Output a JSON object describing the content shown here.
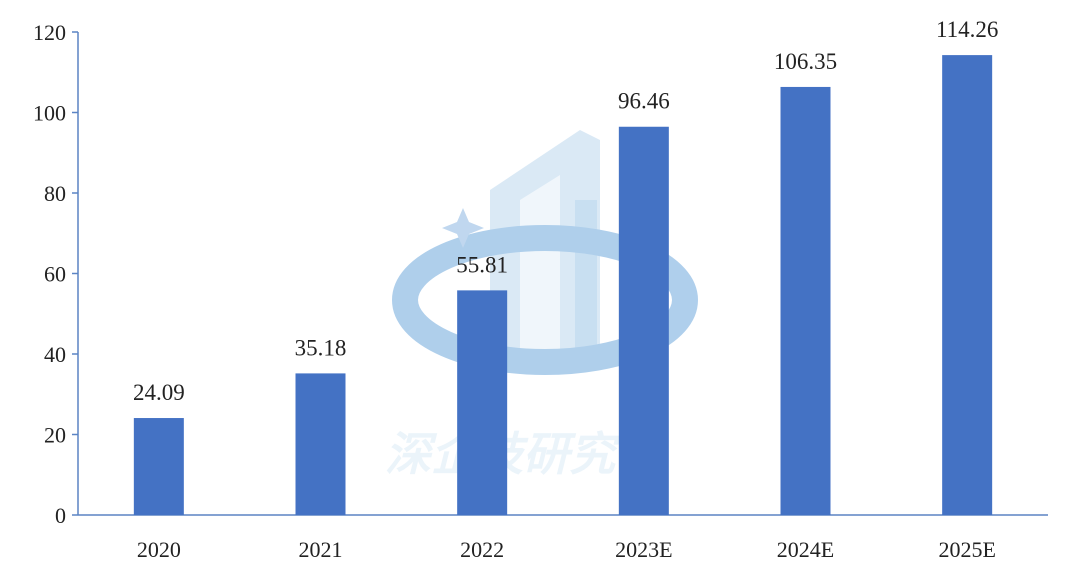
{
  "chart_data": {
    "type": "bar",
    "categories": [
      "2020",
      "2021",
      "2022",
      "2023E",
      "2024E",
      "2025E"
    ],
    "values": [
      24.09,
      35.18,
      55.81,
      96.46,
      106.35,
      114.26
    ],
    "value_labels": [
      "24.09",
      "35.18",
      "55.81",
      "96.46",
      "106.35",
      "114.26"
    ],
    "ylim": [
      0,
      120
    ],
    "yticks": [
      0,
      20,
      40,
      60,
      80,
      100,
      120
    ],
    "grid": false,
    "title": "",
    "xlabel": "",
    "ylabel": "",
    "colors": {
      "bar": "#4472c4",
      "axis": "#5b84c4",
      "text": "#222222"
    }
  },
  "watermark": {
    "text": "深企技研究"
  }
}
